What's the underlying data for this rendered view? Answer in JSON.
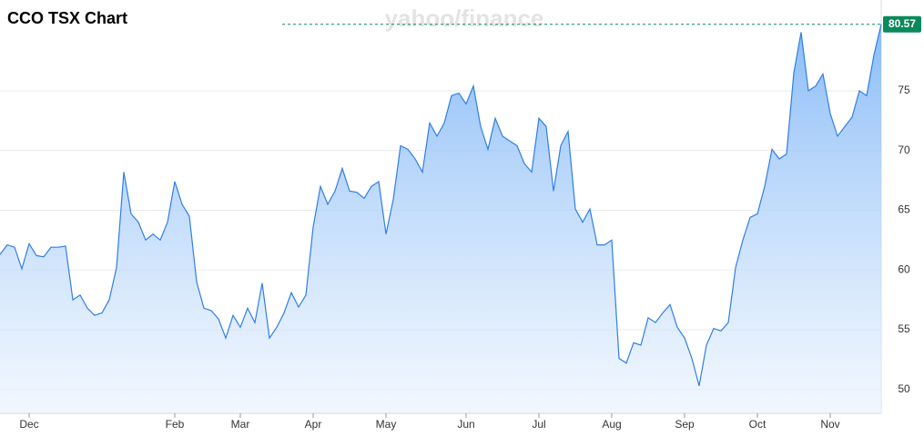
{
  "chart_data": {
    "type": "area",
    "title": "CCO TSX Chart",
    "watermark": "yahoo/finance",
    "categories": [
      null,
      null,
      null,
      null,
      "Dec",
      null,
      null,
      null,
      null,
      null,
      null,
      null,
      null,
      null,
      null,
      null,
      null,
      null,
      null,
      null,
      null,
      null,
      null,
      null,
      "Feb",
      null,
      null,
      null,
      null,
      null,
      null,
      null,
      null,
      "Mar",
      null,
      null,
      null,
      null,
      null,
      null,
      null,
      null,
      null,
      "Apr",
      null,
      null,
      null,
      null,
      null,
      null,
      null,
      null,
      null,
      "May",
      null,
      null,
      null,
      null,
      null,
      null,
      null,
      null,
      null,
      null,
      "Jun",
      null,
      null,
      null,
      null,
      null,
      null,
      null,
      null,
      null,
      "Jul",
      null,
      null,
      null,
      null,
      null,
      null,
      null,
      null,
      null,
      "Aug",
      null,
      null,
      null,
      null,
      null,
      null,
      null,
      null,
      null,
      "Sep",
      null,
      null,
      null,
      null,
      null,
      null,
      null,
      null,
      null,
      "Oct",
      null,
      null,
      null,
      null,
      null,
      null,
      null,
      null,
      null,
      "Nov",
      null,
      null,
      null,
      null,
      null,
      null,
      null
    ],
    "values": [
      61.3,
      62.1,
      61.9,
      60.1,
      62.2,
      61.2,
      61.1,
      61.9,
      61.9,
      62.0,
      57.5,
      57.9,
      56.8,
      56.2,
      56.4,
      57.5,
      60.2,
      68.2,
      64.7,
      64.0,
      62.5,
      63.0,
      62.5,
      64.0,
      67.4,
      65.5,
      64.5,
      59.0,
      56.8,
      56.6,
      55.9,
      54.3,
      56.2,
      55.2,
      56.8,
      55.6,
      58.9,
      54.3,
      55.2,
      56.4,
      58.1,
      56.9,
      57.9,
      63.6,
      67.0,
      65.5,
      66.6,
      68.5,
      66.6,
      66.5,
      66.0,
      67.0,
      67.4,
      63.0,
      65.9,
      70.4,
      70.1,
      69.3,
      68.2,
      72.3,
      71.2,
      72.3,
      74.6,
      74.8,
      73.9,
      75.4,
      72.0,
      70.1,
      72.7,
      71.2,
      70.8,
      70.4,
      68.9,
      68.2,
      72.7,
      72.0,
      66.6,
      70.4,
      71.6,
      65.1,
      64.0,
      65.1,
      62.1,
      62.1,
      62.5,
      52.6,
      52.2,
      53.9,
      53.7,
      56.0,
      55.6,
      56.4,
      57.1,
      55.2,
      54.3,
      52.6,
      50.3,
      53.7,
      55.1,
      54.9,
      55.6,
      60.2,
      62.5,
      64.4,
      64.7,
      67.0,
      70.1,
      69.3,
      69.7,
      76.5,
      79.9,
      75.0,
      75.4,
      76.4,
      73.1,
      71.2,
      72.0,
      72.8,
      75.0,
      74.6,
      78.0,
      80.57
    ],
    "color": "#2f7ee8",
    "last_color": "#0a8a5a",
    "ylim": [
      48,
      82.6
    ],
    "yticks": [
      50,
      55,
      60,
      65,
      70,
      75
    ],
    "grid": true
  }
}
